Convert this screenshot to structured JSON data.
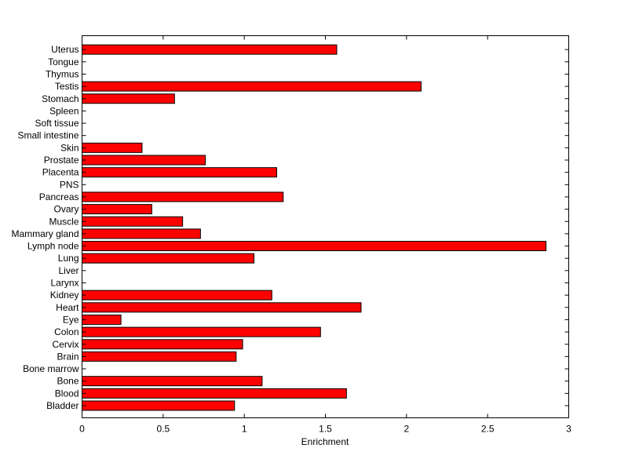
{
  "chart_data": {
    "type": "bar",
    "orientation": "horizontal",
    "title": "",
    "xlabel": "Enrichment",
    "ylabel": "",
    "xlim": [
      0,
      3
    ],
    "xticks": [
      "0",
      "0.5",
      "1",
      "1.5",
      "2",
      "2.5",
      "3"
    ],
    "grid": false,
    "bar_color": "#ff0000",
    "categories": [
      "Bladder",
      "Blood",
      "Bone",
      "Bone marrow",
      "Brain",
      "Cervix",
      "Colon",
      "Eye",
      "Heart",
      "Kidney",
      "Larynx",
      "Liver",
      "Lung",
      "Lymph node",
      "Mammary gland",
      "Muscle",
      "Ovary",
      "Pancreas",
      "PNS",
      "Placenta",
      "Prostate",
      "Skin",
      "Small intestine",
      "Soft tissue",
      "Spleen",
      "Stomach",
      "Testis",
      "Thymus",
      "Tongue",
      "Uterus"
    ],
    "values": [
      0.94,
      1.63,
      1.11,
      0,
      0.95,
      0.99,
      1.47,
      0.24,
      1.72,
      1.17,
      0,
      0,
      1.06,
      2.86,
      0.73,
      0.62,
      0.43,
      1.24,
      0,
      1.2,
      0.76,
      0.37,
      0,
      0,
      0,
      0.57,
      2.09,
      0,
      0,
      1.57
    ]
  }
}
